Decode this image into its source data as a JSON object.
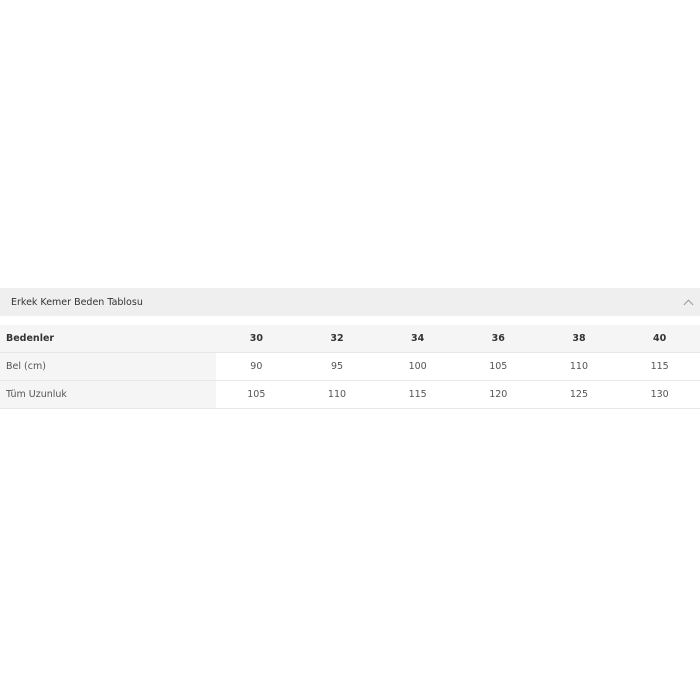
{
  "accordion": {
    "title": "Erkek Kemer Beden Tablosu",
    "icon": "chevron-up-icon",
    "expanded": true
  },
  "table": {
    "header_label": "Bedenler",
    "sizes": [
      "30",
      "32",
      "34",
      "36",
      "38",
      "40"
    ],
    "rows": [
      {
        "label": "Bel (cm)",
        "values": [
          "90",
          "95",
          "100",
          "105",
          "110",
          "115"
        ]
      },
      {
        "label": "Tüm Uzunluk",
        "values": [
          "105",
          "110",
          "115",
          "120",
          "125",
          "130"
        ]
      }
    ]
  }
}
